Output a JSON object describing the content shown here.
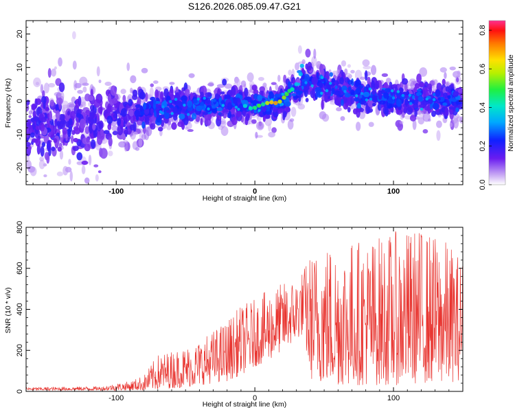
{
  "chart_data": [
    {
      "type": "heatmap",
      "title": "S126.2026.085.09.47.G21",
      "xlabel": "Height of straight line (km)",
      "ylabel": "Frequency (Hz)",
      "xlim": [
        -165,
        150
      ],
      "ylim": [
        -25,
        24
      ],
      "x_ticks": [
        -100,
        0,
        100
      ],
      "y_ticks": [
        -20,
        -10,
        0,
        10,
        20
      ],
      "colorbar": {
        "label": "Normalized spectral amplitude",
        "range": [
          0.0,
          0.85
        ],
        "ticks": [
          0.0,
          0.2,
          0.4,
          0.6,
          0.8
        ]
      },
      "ridge": {
        "x": [
          -120,
          -80,
          -40,
          -10,
          0,
          5,
          10,
          15,
          20,
          25,
          30,
          40,
          60,
          100,
          150
        ],
        "y": [
          -7,
          -3,
          -1,
          -1,
          -2,
          -1,
          -0.5,
          -0.5,
          0,
          2,
          4,
          6,
          3,
          1,
          0
        ]
      }
    },
    {
      "type": "line",
      "xlabel": "Height of straight line (km)",
      "ylabel": "SNR (10 * v/v)",
      "xlim": [
        -165,
        150
      ],
      "ylim": [
        0,
        800
      ],
      "x_ticks": [
        -100,
        0,
        100
      ],
      "y_ticks": [
        0,
        200,
        400,
        600,
        800
      ],
      "series": [
        {
          "name": "SNR",
          "color": "#e8332e",
          "envelope_x": [
            -165,
            -110,
            -100,
            -90,
            -80,
            -70,
            -60,
            -50,
            -40,
            -30,
            -20,
            -10,
            0,
            10,
            20,
            30,
            35,
            40,
            50,
            60,
            80,
            100,
            120,
            140,
            150
          ],
          "envelope_max": [
            20,
            25,
            40,
            50,
            80,
            180,
            200,
            220,
            250,
            300,
            350,
            420,
            450,
            500,
            530,
            560,
            600,
            680,
            730,
            740,
            750,
            780,
            800,
            730,
            650
          ],
          "envelope_min": [
            5,
            5,
            5,
            5,
            5,
            10,
            15,
            20,
            30,
            40,
            50,
            80,
            120,
            150,
            200,
            250,
            280,
            60,
            40,
            30,
            30,
            30,
            40,
            40,
            60
          ]
        }
      ]
    }
  ]
}
